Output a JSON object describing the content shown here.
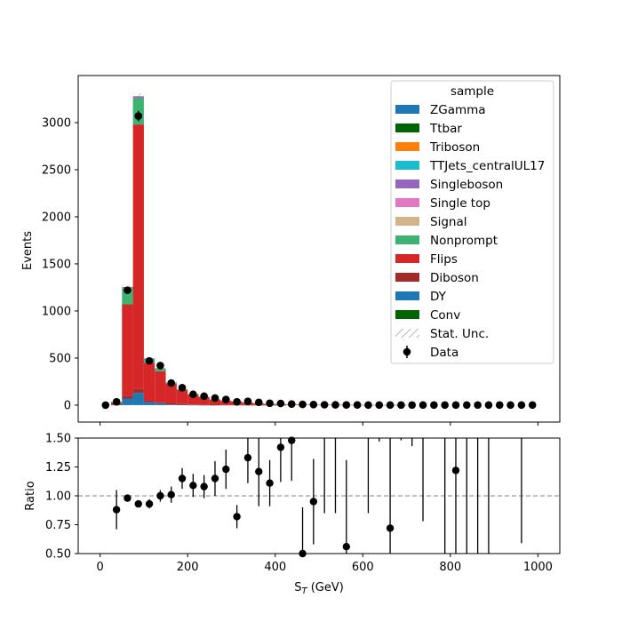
{
  "chart_data": [
    {
      "type": "bar",
      "panel": "main",
      "ylabel": "Events",
      "xlim": [
        -50,
        1050
      ],
      "ylim": [
        -180,
        3500
      ],
      "yticks": [
        0,
        500,
        1000,
        1500,
        2000,
        2500,
        3000
      ],
      "xticks": [
        0,
        200,
        400,
        600,
        800,
        1000
      ],
      "bin_edges": [
        0,
        25,
        50,
        75,
        100,
        125,
        150,
        175,
        200,
        225,
        250,
        275,
        300,
        325,
        350,
        375,
        400,
        425,
        450,
        475,
        500,
        525,
        550,
        575,
        600,
        625,
        650,
        675,
        700,
        725,
        750,
        775,
        800,
        825,
        850,
        875,
        900,
        925,
        950,
        975,
        1000
      ],
      "stack": [
        {
          "name": "DY",
          "color": "#1f77b4",
          "values": [
            0,
            3,
            70,
            130,
            30,
            20,
            8,
            4,
            2,
            1,
            1,
            0,
            0,
            0,
            0,
            0,
            0,
            0,
            0,
            0,
            0,
            0,
            0,
            0,
            0,
            0,
            0,
            0,
            0,
            0,
            0,
            0,
            0,
            0,
            0,
            0,
            0,
            0,
            0,
            0
          ]
        },
        {
          "name": "Diboson",
          "color": "#a52a2a",
          "values": [
            0,
            3,
            30,
            40,
            25,
            15,
            10,
            7,
            5,
            4,
            3,
            2,
            2,
            1,
            1,
            1,
            1,
            0,
            0,
            0,
            0,
            0,
            0,
            0,
            0,
            0,
            0,
            0,
            0,
            0,
            0,
            0,
            0,
            0,
            0,
            0,
            0,
            0,
            0,
            0
          ]
        },
        {
          "name": "Flips",
          "color": "#d62728",
          "values": [
            0,
            20,
            970,
            2810,
            395,
            325,
            210,
            150,
            105,
            80,
            55,
            45,
            35,
            25,
            18,
            12,
            10,
            8,
            5,
            4,
            3,
            3,
            2,
            2,
            1,
            1,
            1,
            1,
            0,
            0,
            0,
            0,
            0,
            0,
            0,
            0,
            0,
            0,
            0,
            0
          ]
        },
        {
          "name": "Nonprompt",
          "color": "#3cb371",
          "values": [
            0,
            8,
            180,
            280,
            40,
            30,
            12,
            8,
            5,
            4,
            3,
            2,
            2,
            1,
            1,
            1,
            1,
            1,
            0,
            0,
            0,
            0,
            0,
            0,
            0,
            0,
            0,
            0,
            0,
            0,
            0,
            0,
            0,
            0,
            0,
            0,
            0,
            0,
            0,
            0
          ]
        },
        {
          "name": "Signleboson",
          "color": "#9467bd",
          "values": [
            0,
            0,
            5,
            20,
            5,
            2,
            0,
            0,
            0,
            0,
            0,
            0,
            0,
            0,
            0,
            0,
            0,
            0,
            0,
            0,
            0,
            0,
            0,
            0,
            0,
            0,
            0,
            0,
            0,
            0,
            0,
            0,
            0,
            0,
            0,
            0,
            0,
            0,
            0,
            0
          ]
        }
      ],
      "data_points": {
        "name": "Data",
        "x": [
          12.5,
          37.5,
          62.5,
          87.5,
          112.5,
          137.5,
          162.5,
          187.5,
          212.5,
          237.5,
          262.5,
          287.5,
          312.5,
          337.5,
          362.5,
          387.5,
          412.5,
          437.5,
          462.5,
          487.5,
          512.5,
          537.5,
          562.5,
          587.5,
          612.5,
          637.5,
          662.5,
          687.5,
          712.5,
          737.5,
          762.5,
          787.5,
          812.5,
          837.5,
          862.5,
          887.5,
          912.5,
          937.5,
          962.5,
          987.5
        ],
        "y": [
          0,
          35,
          1220,
          3070,
          470,
          420,
          235,
          185,
          115,
          95,
          75,
          60,
          35,
          40,
          30,
          20,
          18,
          12,
          8,
          6,
          4,
          3,
          2,
          2,
          1,
          1,
          1,
          1,
          1,
          1,
          1,
          1,
          1,
          1,
          1,
          1,
          1,
          1,
          1,
          1
        ],
        "yerr": [
          0,
          6,
          35,
          55,
          22,
          20,
          15,
          14,
          11,
          10,
          9,
          8,
          6,
          6,
          5,
          5,
          4,
          4,
          3,
          3,
          2,
          2,
          2,
          2,
          1,
          1,
          1,
          1,
          1,
          1,
          1,
          1,
          1,
          1,
          1,
          1,
          1,
          1,
          1,
          1
        ]
      }
    },
    {
      "type": "scatter",
      "panel": "ratio",
      "xlabel": "S_T (GeV)",
      "ylabel": "Ratio",
      "xlim": [
        -50,
        1050
      ],
      "ylim": [
        0.5,
        1.5
      ],
      "yticks": [
        0.5,
        0.75,
        1.0,
        1.25,
        1.5
      ],
      "ytick_labels": [
        "0.50",
        "0.75",
        "1.00",
        "1.25",
        "1.50"
      ],
      "xticks": [
        0,
        200,
        400,
        600,
        800,
        1000
      ],
      "reference_line": 1.0,
      "points": {
        "x": [
          37.5,
          62.5,
          87.5,
          112.5,
          137.5,
          162.5,
          187.5,
          212.5,
          237.5,
          262.5,
          287.5,
          312.5,
          337.5,
          362.5,
          387.5,
          412.5,
          437.5,
          462.5,
          487.5,
          562.5,
          662.5,
          812.5
        ],
        "y": [
          0.88,
          0.98,
          0.93,
          0.93,
          1.0,
          1.01,
          1.15,
          1.09,
          1.08,
          1.15,
          1.23,
          0.82,
          1.33,
          1.21,
          1.11,
          1.42,
          1.48,
          0.5,
          0.95,
          0.56,
          0.72,
          1.22
        ],
        "err": [
          0.17,
          0.03,
          0.02,
          0.04,
          0.05,
          0.07,
          0.09,
          0.1,
          0.1,
          0.15,
          0.17,
          0.1,
          0.22,
          0.3,
          0.2,
          0.3,
          0.35,
          0.4,
          0.37,
          0.75,
          0.8,
          1.0
        ]
      },
      "long_error_bars": {
        "x": [
          512.5,
          537.5,
          612.5,
          637.5,
          687.5,
          712.5,
          737.5,
          787.5,
          837.5,
          862.5,
          887.5,
          962.5
        ],
        "low": [
          0.85,
          0.85,
          0.85,
          1.47,
          1.48,
          1.43,
          0.78,
          0.5,
          0.5,
          0.5,
          0.5,
          0.59
        ]
      }
    }
  ],
  "legend": {
    "title": "sample",
    "items": [
      {
        "label": "ZGamma",
        "color": "#1f77b4",
        "kind": "patch"
      },
      {
        "label": "Ttbar",
        "color": "#006400",
        "kind": "patch"
      },
      {
        "label": "Triboson",
        "color": "#ff7f0e",
        "kind": "patch"
      },
      {
        "label": "TTJets_centralUL17",
        "color": "#17becf",
        "kind": "patch"
      },
      {
        "label": "Singleboson",
        "color": "#9467bd",
        "kind": "patch"
      },
      {
        "label": "Single top",
        "color": "#e377c2",
        "kind": "patch"
      },
      {
        "label": "Signal",
        "color": "#d2b48c",
        "kind": "patch"
      },
      {
        "label": "Nonprompt",
        "color": "#3cb371",
        "kind": "patch"
      },
      {
        "label": "Flips",
        "color": "#d62728",
        "kind": "patch"
      },
      {
        "label": "Diboson",
        "color": "#a52a2a",
        "kind": "patch"
      },
      {
        "label": "DY",
        "color": "#1f77b4",
        "kind": "patch"
      },
      {
        "label": "Conv",
        "color": "#006400",
        "kind": "patch"
      },
      {
        "label": "Stat. Unc.",
        "color": "#999999",
        "kind": "hatch"
      },
      {
        "label": "Data",
        "color": "#000000",
        "kind": "errorpoint"
      }
    ]
  }
}
